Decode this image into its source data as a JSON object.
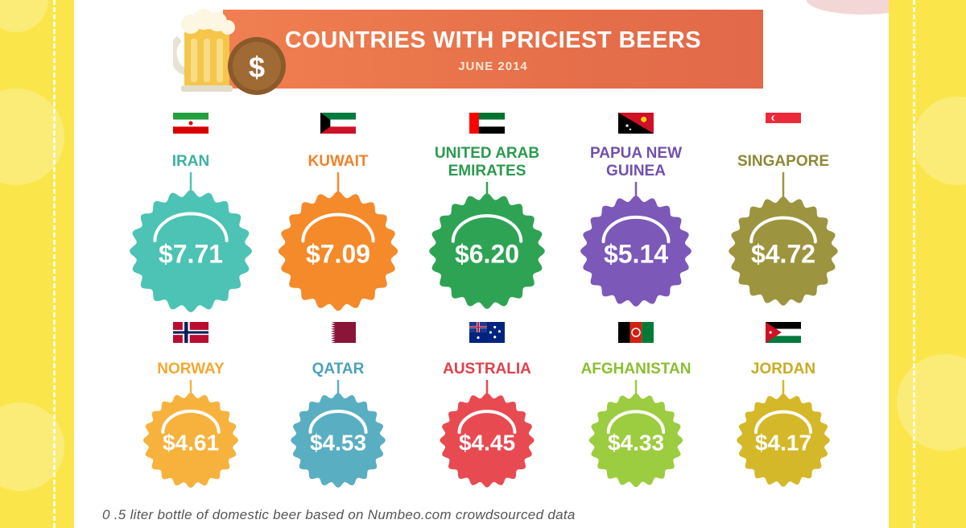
{
  "header": {
    "title": "COUNTRIES WITH PRICIEST BEERS",
    "subtitle": "JUNE 2014",
    "coin_symbol": "$"
  },
  "footnote": "0 .5 liter bottle of domestic beer based on Numbeo.com crowdsourced data",
  "chart_data": {
    "type": "bar",
    "title": "COUNTRIES WITH PRICIEST BEERS",
    "subtitle": "JUNE 2014",
    "unit": "USD",
    "categories": [
      "IRAN",
      "KUWAIT",
      "UNITED ARAB EMIRATES",
      "PAPUA NEW GUINEA",
      "SINGAPORE",
      "NORWAY",
      "QATAR",
      "AUSTRALIA",
      "AFGHANISTAN",
      "JORDAN"
    ],
    "values": [
      7.71,
      7.09,
      6.2,
      5.14,
      4.72,
      4.61,
      4.53,
      4.45,
      4.33,
      4.17
    ],
    "items": [
      {
        "country": "IRAN",
        "label_lines": [
          "IRAN"
        ],
        "price_label": "$7.71",
        "value": 7.71,
        "color": "#4cc3b4",
        "label_color": "#3ab2a4",
        "flag": "iran"
      },
      {
        "country": "KUWAIT",
        "label_lines": [
          "KUWAIT"
        ],
        "price_label": "$7.09",
        "value": 7.09,
        "color": "#f48a2a",
        "label_color": "#f08228",
        "flag": "kuwait"
      },
      {
        "country": "UNITED ARAB EMIRATES",
        "label_lines": [
          "UNITED ARAB",
          "EMIRATES"
        ],
        "price_label": "$6.20",
        "value": 6.2,
        "color": "#2ea354",
        "label_color": "#2c9a50",
        "flag": "uae"
      },
      {
        "country": "PAPUA NEW GUINEA",
        "label_lines": [
          "PAPUA NEW",
          "GUINEA"
        ],
        "price_label": "$5.14",
        "value": 5.14,
        "color": "#7c58b8",
        "label_color": "#7150ae",
        "flag": "png"
      },
      {
        "country": "SINGAPORE",
        "label_lines": [
          "SINGAPORE"
        ],
        "price_label": "$4.72",
        "value": 4.72,
        "color": "#9d9440",
        "label_color": "#8e8838",
        "flag": "singapore"
      },
      {
        "country": "NORWAY",
        "label_lines": [
          "NORWAY"
        ],
        "price_label": "$4.61",
        "value": 4.61,
        "color": "#f7b23e",
        "label_color": "#f3a834",
        "flag": "norway"
      },
      {
        "country": "QATAR",
        "label_lines": [
          "QATAR"
        ],
        "price_label": "$4.53",
        "value": 4.53,
        "color": "#5aaec2",
        "label_color": "#4ca2b8",
        "flag": "qatar"
      },
      {
        "country": "AUSTRALIA",
        "label_lines": [
          "AUSTRALIA"
        ],
        "price_label": "$4.45",
        "value": 4.45,
        "color": "#e84a52",
        "label_color": "#e0404a",
        "flag": "australia"
      },
      {
        "country": "AFGHANISTAN",
        "label_lines": [
          "AFGHANISTAN"
        ],
        "price_label": "$4.33",
        "value": 4.33,
        "color": "#9ccc3f",
        "label_color": "#8cbe32",
        "flag": "afghanistan"
      },
      {
        "country": "JORDAN",
        "label_lines": [
          "JORDAN"
        ],
        "price_label": "$4.17",
        "value": 4.17,
        "color": "#d4b82a",
        "label_color": "#c8ac22",
        "flag": "jordan"
      }
    ]
  }
}
